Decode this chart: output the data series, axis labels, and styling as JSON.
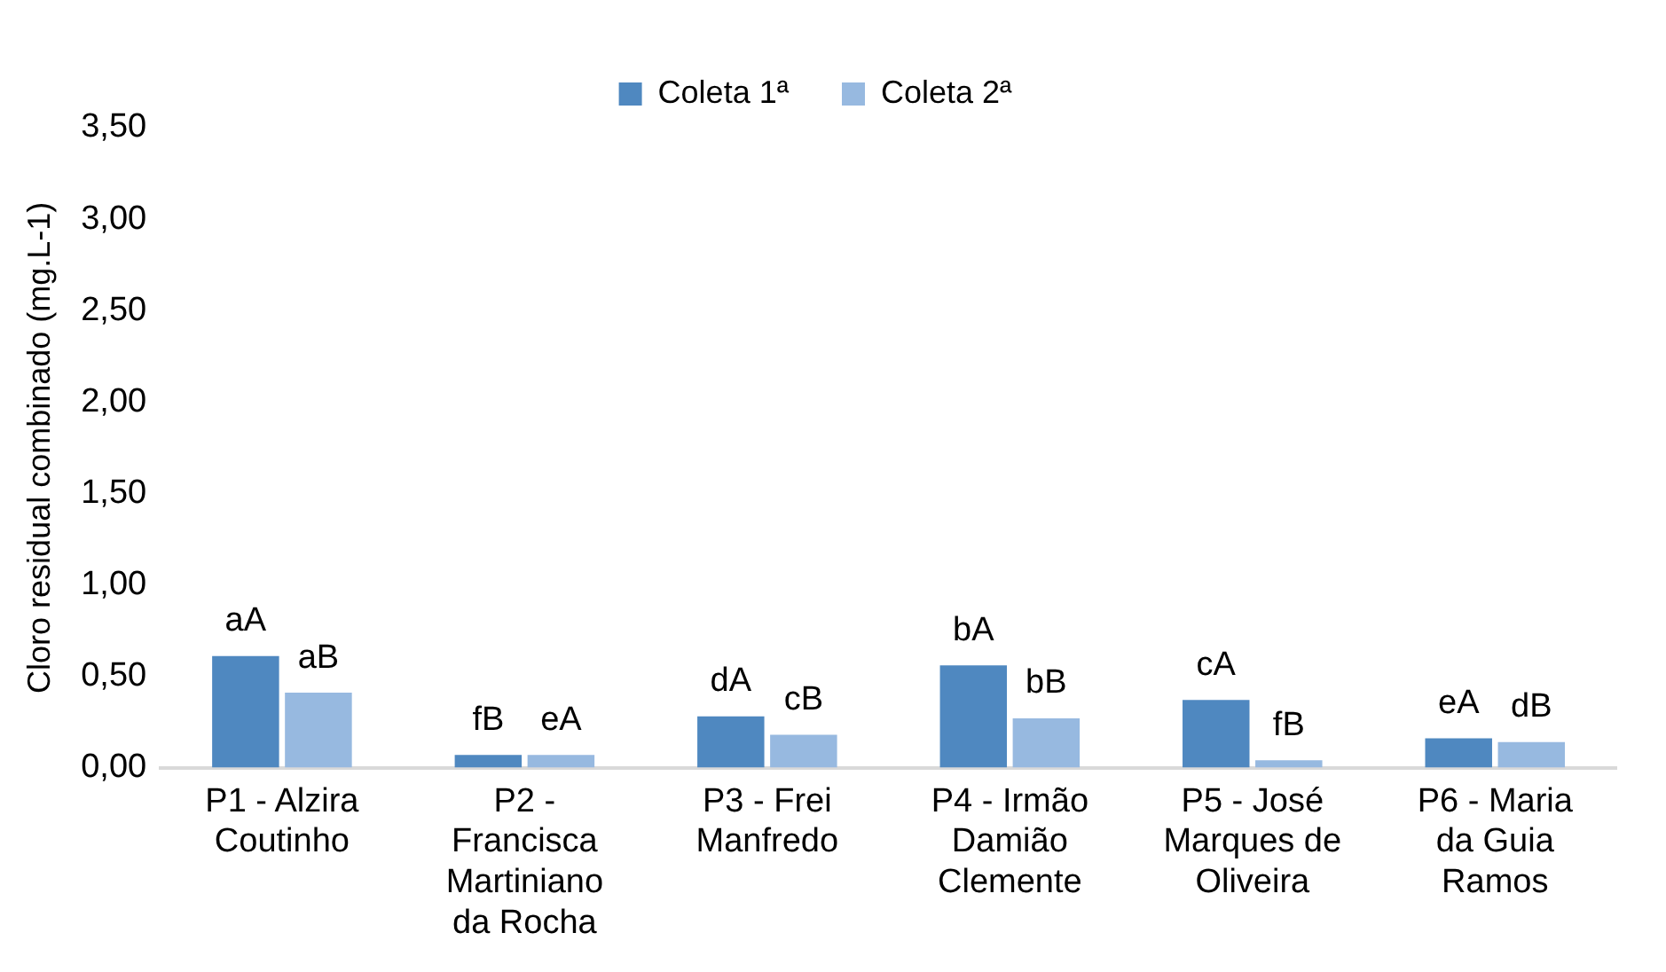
{
  "chart_data": {
    "type": "bar",
    "ylabel": "Cloro residual combinado (mg.L-1)",
    "categories": [
      "P1 - Alzira Coutinho",
      "P2 - Francisca Martiniano da Rocha",
      "P3 - Frei Manfredo",
      "P4 - Irmão Damião Clemente",
      "P5 - José Marques de Oliveira",
      "P6 - Maria da Guia Ramos"
    ],
    "series": [
      {
        "name": "Coleta 1ª",
        "color": "#4f88c0",
        "values": [
          0.61,
          0.07,
          0.28,
          0.56,
          0.37,
          0.16
        ],
        "value_labels": [
          "aA",
          "fB",
          "dA",
          "bA",
          "cA",
          "eA"
        ]
      },
      {
        "name": "Coleta 2ª",
        "color": "#97b9e0",
        "values": [
          0.41,
          0.07,
          0.18,
          0.27,
          0.04,
          0.14
        ],
        "value_labels": [
          "aB",
          "eA",
          "cB",
          "bB",
          "fB",
          "dB"
        ]
      }
    ],
    "ylim": [
      0,
      3.5
    ],
    "yticks": [
      {
        "value": 0,
        "label": "0,00"
      },
      {
        "value": 0.5,
        "label": "0,50"
      },
      {
        "value": 1,
        "label": "1,00"
      },
      {
        "value": 1.5,
        "label": "1,50"
      },
      {
        "value": 2,
        "label": "2,00"
      },
      {
        "value": 2.5,
        "label": "2,50"
      },
      {
        "value": 3,
        "label": "3,00"
      },
      {
        "value": 3.5,
        "label": "3,50"
      }
    ],
    "grid": false,
    "legend": "top"
  }
}
